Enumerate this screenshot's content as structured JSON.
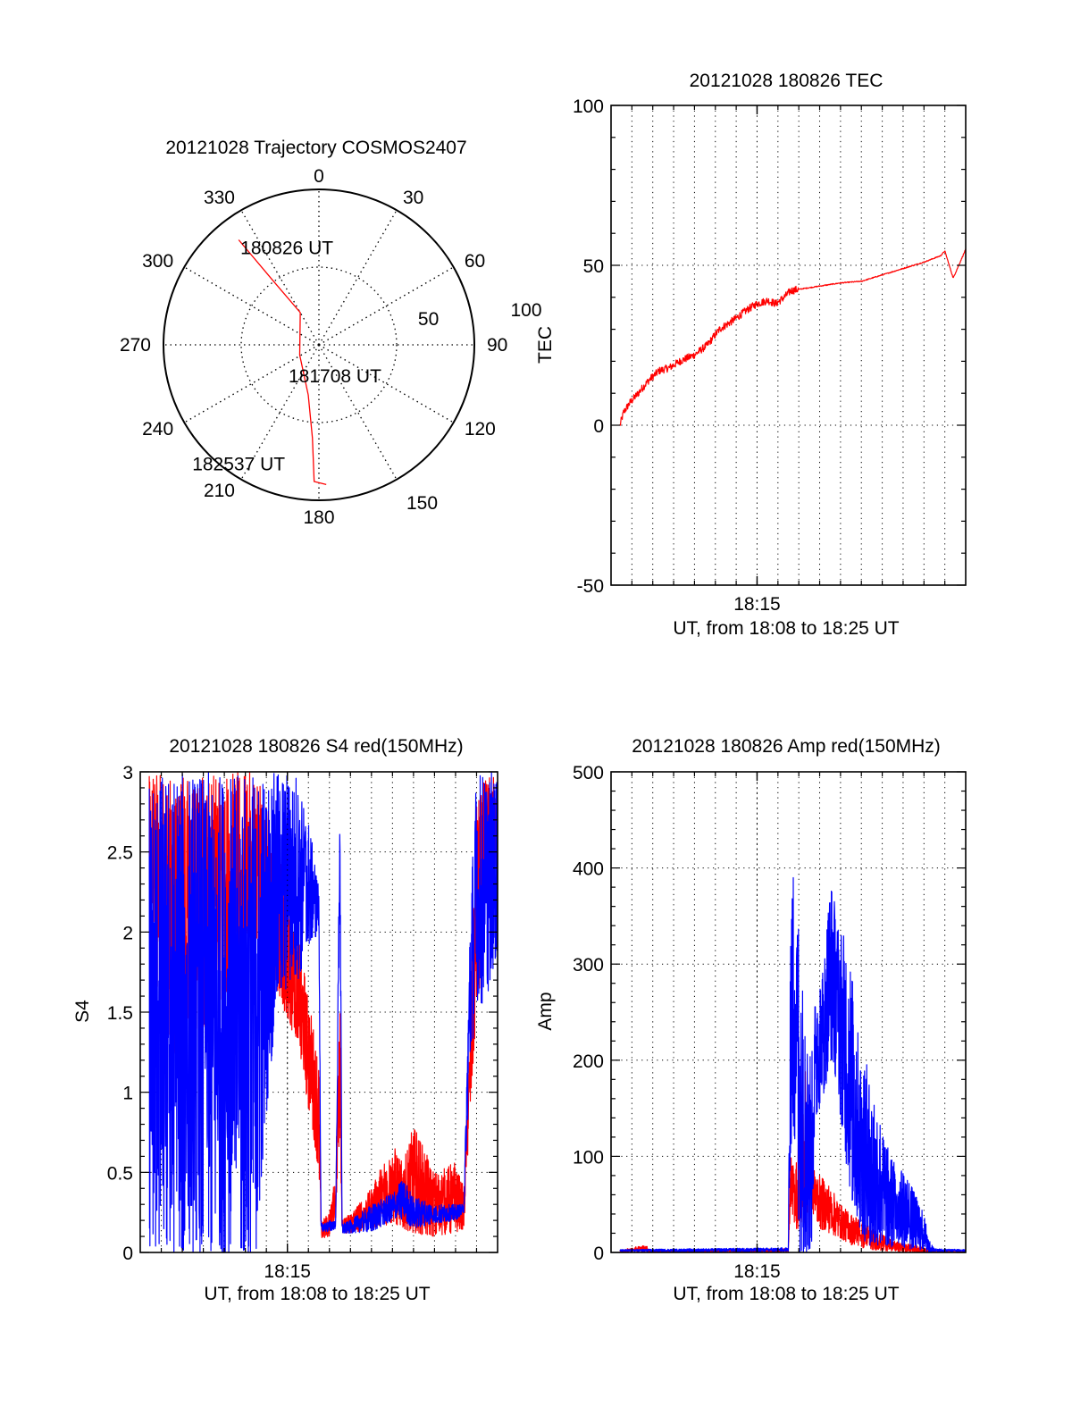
{
  "chart_data": [
    {
      "id": "trajectory",
      "type": "polar",
      "title": "20121028 Trajectory COSMOS2407",
      "azimuth_labels": [
        "0",
        "30",
        "60",
        "90",
        "120",
        "150",
        "180",
        "210",
        "240",
        "270",
        "300",
        "330"
      ],
      "azimuth_degrees": [
        0,
        30,
        60,
        90,
        120,
        150,
        180,
        210,
        240,
        270,
        300,
        330
      ],
      "radial_labels": [
        "50",
        "100"
      ],
      "radial_values": [
        50,
        100
      ],
      "radial_max": 100,
      "grid": true,
      "series": [
        {
          "name": "trajectory",
          "color": "#ff0000",
          "points_az_r": [
            [
              -37.4,
              85
            ],
            [
              -35.5,
              50
            ],
            [
              -30,
              24
            ],
            [
              -118,
              14
            ],
            [
              -168,
              33
            ],
            [
              -176,
              60
            ],
            [
              -178,
              88
            ],
            [
              177,
              90
            ]
          ]
        }
      ],
      "annotations": [
        {
          "text": "180826 UT",
          "at": "start"
        },
        {
          "text": "181708 UT",
          "at": "middle"
        },
        {
          "text": "182537 UT",
          "at": "end"
        }
      ]
    },
    {
      "id": "tec",
      "type": "line",
      "title": "20121028 180826 TEC",
      "xlabel": "UT, from 18:08 to 18:25 UT",
      "ylabel": "TEC",
      "xlim_minutes": [
        0,
        17
      ],
      "x_ticks": [
        {
          "label": "18:15",
          "minute": 7
        }
      ],
      "ylim": [
        -50,
        100
      ],
      "y_ticks": [
        "-50",
        "0",
        "50",
        "100"
      ],
      "y_tick_values": [
        -50,
        0,
        50,
        100
      ],
      "grid": true,
      "series": [
        {
          "name": "TEC",
          "color": "#ff0000",
          "x_minutes": [
            0.43,
            0.6,
            0.9,
            1.3,
            1.8,
            2.3,
            2.8,
            3.3,
            4.0,
            4.6,
            5.2,
            5.9,
            6.5,
            7.0,
            7.5,
            7.9,
            8.3,
            8.6,
            9.0,
            10.0,
            11.0,
            12.0,
            13.0,
            14.0,
            15.0,
            15.8,
            16.0,
            16.4,
            17.0
          ],
          "y": [
            0,
            4,
            7,
            10,
            14,
            17,
            18,
            20,
            22,
            25,
            30,
            33,
            36,
            38,
            39,
            38,
            40,
            42,
            42.5,
            43.5,
            44.5,
            45,
            47,
            49,
            51,
            53,
            54.5,
            46,
            55
          ]
        }
      ]
    },
    {
      "id": "s4",
      "type": "line",
      "title": "20121028 180826 S4 red(150MHz)",
      "xlabel": "UT, from 18:08 to 18:25 UT",
      "ylabel": "S4",
      "xlim_minutes": [
        0,
        17
      ],
      "x_ticks": [
        {
          "label": "18:15",
          "minute": 7
        }
      ],
      "ylim": [
        0,
        3
      ],
      "y_ticks": [
        "0",
        "0.5",
        "1",
        "1.5",
        "2",
        "2.5",
        "3"
      ],
      "y_tick_values": [
        0,
        0.5,
        1,
        1.5,
        2,
        2.5,
        3
      ],
      "grid": true,
      "series": [
        {
          "name": "red (150MHz)",
          "color": "#ff0000",
          "x_minutes": [
            0.43,
            1.5,
            2.5,
            3.5,
            4.5,
            5.5,
            6.5,
            7.5,
            8.0,
            8.5,
            8.6,
            9.0,
            9.3,
            9.5,
            9.6,
            10.0,
            11.0,
            12.0,
            12.5,
            13.0,
            14.0,
            15.0,
            15.4,
            15.7,
            16.0,
            16.5,
            17.0
          ],
          "y_low": [
            1.9,
            1.2,
            1.3,
            1.5,
            1.7,
            1.8,
            1.6,
            1.3,
            0.9,
            0.5,
            0.08,
            0.1,
            0.2,
            0.8,
            0.12,
            0.12,
            0.15,
            0.18,
            0.15,
            0.12,
            0.1,
            0.12,
            0.15,
            0.9,
            1.5,
            2.0,
            2.5
          ],
          "y_high": [
            3.0,
            3.0,
            3.0,
            3.0,
            3.0,
            3.0,
            2.6,
            2.0,
            1.6,
            1.2,
            0.2,
            0.25,
            0.5,
            1.9,
            0.2,
            0.25,
            0.4,
            0.7,
            0.55,
            0.8,
            0.5,
            0.57,
            0.4,
            1.4,
            2.8,
            3.0,
            3.0
          ]
        },
        {
          "name": "blue",
          "color": "#0000ff",
          "x_minutes": [
            0.43,
            1.5,
            2.5,
            3.5,
            4.5,
            5.5,
            6.5,
            7.5,
            8.0,
            8.5,
            8.6,
            9.0,
            9.3,
            9.5,
            9.6,
            10.0,
            11.0,
            12.0,
            12.5,
            13.0,
            14.0,
            15.0,
            15.4,
            15.7,
            16.0,
            16.5,
            17.0
          ],
          "y_low": [
            0,
            0,
            0,
            0,
            0,
            0,
            1.6,
            1.7,
            1.9,
            2.0,
            0.13,
            0.13,
            0.15,
            2.3,
            0.12,
            0.12,
            0.13,
            0.2,
            0.2,
            0.15,
            0.18,
            0.2,
            0.25,
            1.2,
            1.5,
            1.6,
            1.9
          ],
          "y_high": [
            3.0,
            3.0,
            3.0,
            3.0,
            3.0,
            3.0,
            3.0,
            3.0,
            2.7,
            2.3,
            0.18,
            0.2,
            0.2,
            2.95,
            0.18,
            0.2,
            0.3,
            0.37,
            0.47,
            0.35,
            0.3,
            0.3,
            0.3,
            2.2,
            3.0,
            3.0,
            3.0
          ]
        }
      ]
    },
    {
      "id": "amp",
      "type": "line",
      "title": "20121028 180826 Amp red(150MHz)",
      "xlabel": "UT, from 18:08 to 18:25 UT",
      "ylabel": "Amp",
      "xlim_minutes": [
        0,
        17
      ],
      "x_ticks": [
        {
          "label": "18:15",
          "minute": 7
        }
      ],
      "ylim": [
        0,
        500
      ],
      "y_ticks": [
        "0",
        "100",
        "200",
        "300",
        "400",
        "500"
      ],
      "y_tick_values": [
        0,
        100,
        200,
        300,
        400,
        500
      ],
      "grid": true,
      "series": [
        {
          "name": "red (150MHz)",
          "color": "#ff0000",
          "x_minutes": [
            0.43,
            1.6,
            1.7,
            1.8,
            8.5,
            8.6,
            8.8,
            9.0,
            9.3,
            9.5,
            9.7,
            10.0,
            10.5,
            11.0,
            11.5,
            12.0,
            12.5,
            13.0,
            13.5,
            14.0,
            14.5,
            15.0,
            15.3,
            15.5,
            17.0
          ],
          "y_low": [
            0,
            0,
            0,
            0,
            0,
            50,
            30,
            10,
            20,
            50,
            40,
            25,
            20,
            15,
            8,
            5,
            3,
            2,
            1,
            0,
            0,
            0,
            0,
            0,
            0
          ],
          "y_high": [
            2,
            8,
            8,
            2,
            4,
            100,
            90,
            130,
            200,
            120,
            90,
            80,
            70,
            50,
            40,
            35,
            25,
            20,
            12,
            10,
            8,
            5,
            3,
            1,
            1
          ]
        },
        {
          "name": "blue",
          "color": "#0000ff",
          "x_minutes": [
            0.43,
            8.5,
            8.6,
            8.8,
            9.0,
            9.2,
            9.6,
            9.8,
            10.2,
            10.5,
            10.8,
            11.2,
            11.5,
            11.8,
            12.2,
            12.6,
            13.0,
            13.4,
            13.8,
            14.2,
            14.6,
            15.0,
            15.3,
            15.5,
            17.0
          ],
          "y_low": [
            1,
            1,
            100,
            120,
            0,
            0,
            0,
            140,
            160,
            200,
            180,
            100,
            60,
            30,
            10,
            5,
            10,
            5,
            10,
            3,
            5,
            1,
            0,
            1,
            1
          ],
          "y_high": [
            3,
            5,
            350,
            430,
            350,
            300,
            200,
            270,
            300,
            390,
            360,
            330,
            300,
            240,
            200,
            170,
            130,
            100,
            90,
            80,
            60,
            40,
            10,
            4,
            3
          ]
        }
      ]
    }
  ]
}
